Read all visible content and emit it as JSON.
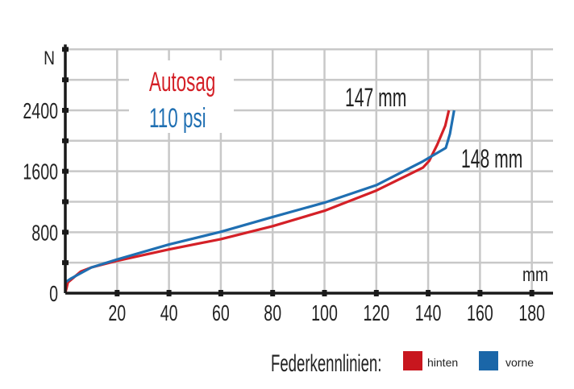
{
  "chart_data": {
    "type": "line",
    "xlabel": "mm",
    "ylabel": "N",
    "xlim": [
      0,
      180
    ],
    "ylim": [
      0,
      3200
    ],
    "x_ticks": [
      20,
      40,
      60,
      80,
      100,
      120,
      140,
      160,
      180
    ],
    "y_ticks_labeled": [
      0,
      800,
      1600,
      2400
    ],
    "y_gridlines": [
      400,
      800,
      1200,
      1600,
      2000,
      2400,
      2800,
      3200
    ],
    "grid": true,
    "annotations": {
      "title_line1": "Autosag",
      "title_line2": "110 psi",
      "rear_travel": "147 mm",
      "front_travel": "148 mm"
    },
    "legend": {
      "title": "Federkennlinien:",
      "placement": "bottom-right",
      "entries": [
        "hinten",
        "vorne"
      ]
    },
    "series": [
      {
        "name": "hinten",
        "color": "#d42027",
        "x": [
          0,
          1,
          6,
          10,
          20,
          40,
          60,
          80,
          100,
          120,
          138,
          140.4,
          143.5,
          146.6,
          148
        ],
        "y": [
          0,
          142,
          284,
          337,
          425,
          574,
          709,
          879,
          1081,
          1347,
          1648,
          1737,
          1950,
          2198,
          2400
        ]
      },
      {
        "name": "vorne",
        "color": "#1f6fb2",
        "x": [
          0,
          2.3,
          10,
          20,
          40,
          60,
          80,
          100,
          120,
          138,
          146.8,
          148.4,
          150
        ],
        "y": [
          142,
          195,
          337,
          443,
          638,
          805,
          1000,
          1188,
          1418,
          1730,
          1907,
          2091,
          2400
        ]
      }
    ]
  }
}
